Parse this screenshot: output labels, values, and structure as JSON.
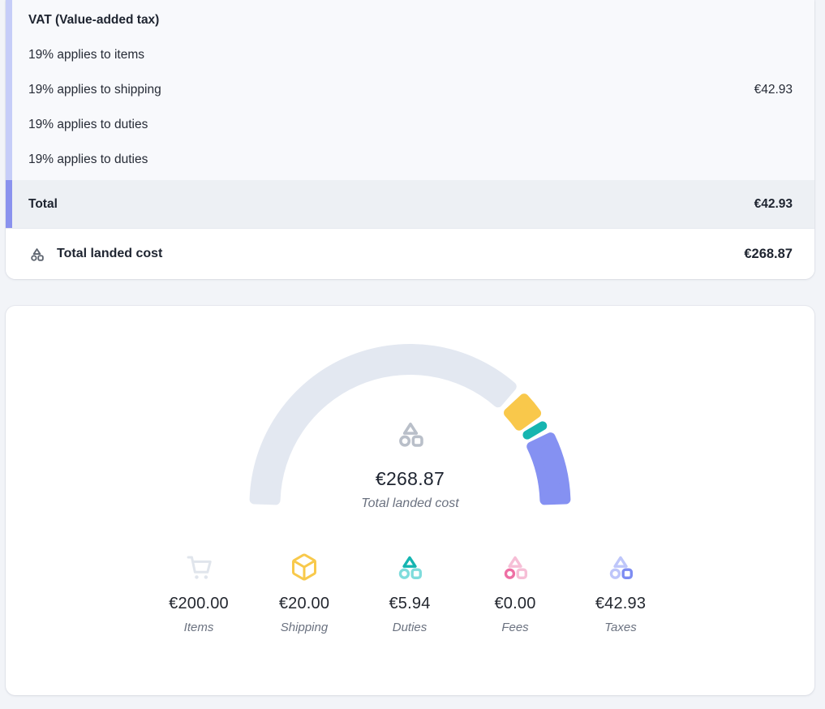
{
  "page": {
    "background": "#f2f4f8"
  },
  "breakdown_card": {
    "vat_section": {
      "title": "VAT (Value-added tax)",
      "accent_color": "#c6cdf8",
      "background": "#f8f9fc",
      "lines": [
        {
          "label": "19% applies to items",
          "value": ""
        },
        {
          "label": "19% applies to shipping",
          "value": "€42.93"
        },
        {
          "label": "19% applies to duties",
          "value": ""
        },
        {
          "label": "19% applies to duties",
          "value": ""
        }
      ]
    },
    "total_row": {
      "label": "Total",
      "value": "€42.93",
      "accent_color": "#8a92ee",
      "background": "#edf0f4"
    },
    "landed_cost_row": {
      "label": "Total landed cost",
      "value": "€268.87",
      "icon": "landed-cost-mark",
      "icon_colors": {
        "primary": "#5e6570"
      }
    }
  },
  "gauge_card": {
    "center": {
      "icon": "landed-cost-mark",
      "icon_colors": {
        "primary": "#b9bfc9"
      },
      "amount": "€268.87",
      "caption": "Total landed cost"
    },
    "legend": [
      {
        "value": "€200.00",
        "label": "Items",
        "icon": "shopping-cart",
        "icon_colors": {
          "primary": "#e0e5ec"
        }
      },
      {
        "value": "€20.00",
        "label": "Shipping",
        "icon": "package-cube",
        "icon_colors": {
          "primary": "#f8c94b"
        }
      },
      {
        "value": "€5.94",
        "label": "Duties",
        "icon": "landed-cost-mark",
        "icon_colors": {
          "triangle": "#14b5b1",
          "circle": "#7fdcdc",
          "square": "#7fdcdc"
        }
      },
      {
        "value": "€0.00",
        "label": "Fees",
        "icon": "landed-cost-mark",
        "icon_colors": {
          "triangle": "#f6bed6",
          "circle": "#ee6fa4",
          "square": "#f6bed6"
        }
      },
      {
        "value": "€42.93",
        "label": "Taxes",
        "icon": "landed-cost-mark",
        "icon_colors": {
          "triangle": "#bec6fa",
          "circle": "#bec6fa",
          "square": "#7d8cf2"
        }
      }
    ]
  },
  "chart_data": {
    "type": "gauge-donut",
    "title": "Total landed cost",
    "center_value": 268.87,
    "center_value_formatted": "€268.87",
    "currency": "EUR",
    "arc_span_degrees": 180,
    "legend_position": "bottom",
    "series": [
      {
        "name": "Items",
        "value": 200.0,
        "formatted": "€200.00",
        "color": "#e3e8f1"
      },
      {
        "name": "Shipping",
        "value": 20.0,
        "formatted": "€20.00",
        "color": "#f9c84b"
      },
      {
        "name": "Duties",
        "value": 5.94,
        "formatted": "€5.94",
        "color": "#16b5b0"
      },
      {
        "name": "Fees",
        "value": 0.0,
        "formatted": "€0.00",
        "color": "#ee6fa4"
      },
      {
        "name": "Taxes",
        "value": 42.93,
        "formatted": "€42.93",
        "color": "#8591f2"
      }
    ]
  }
}
